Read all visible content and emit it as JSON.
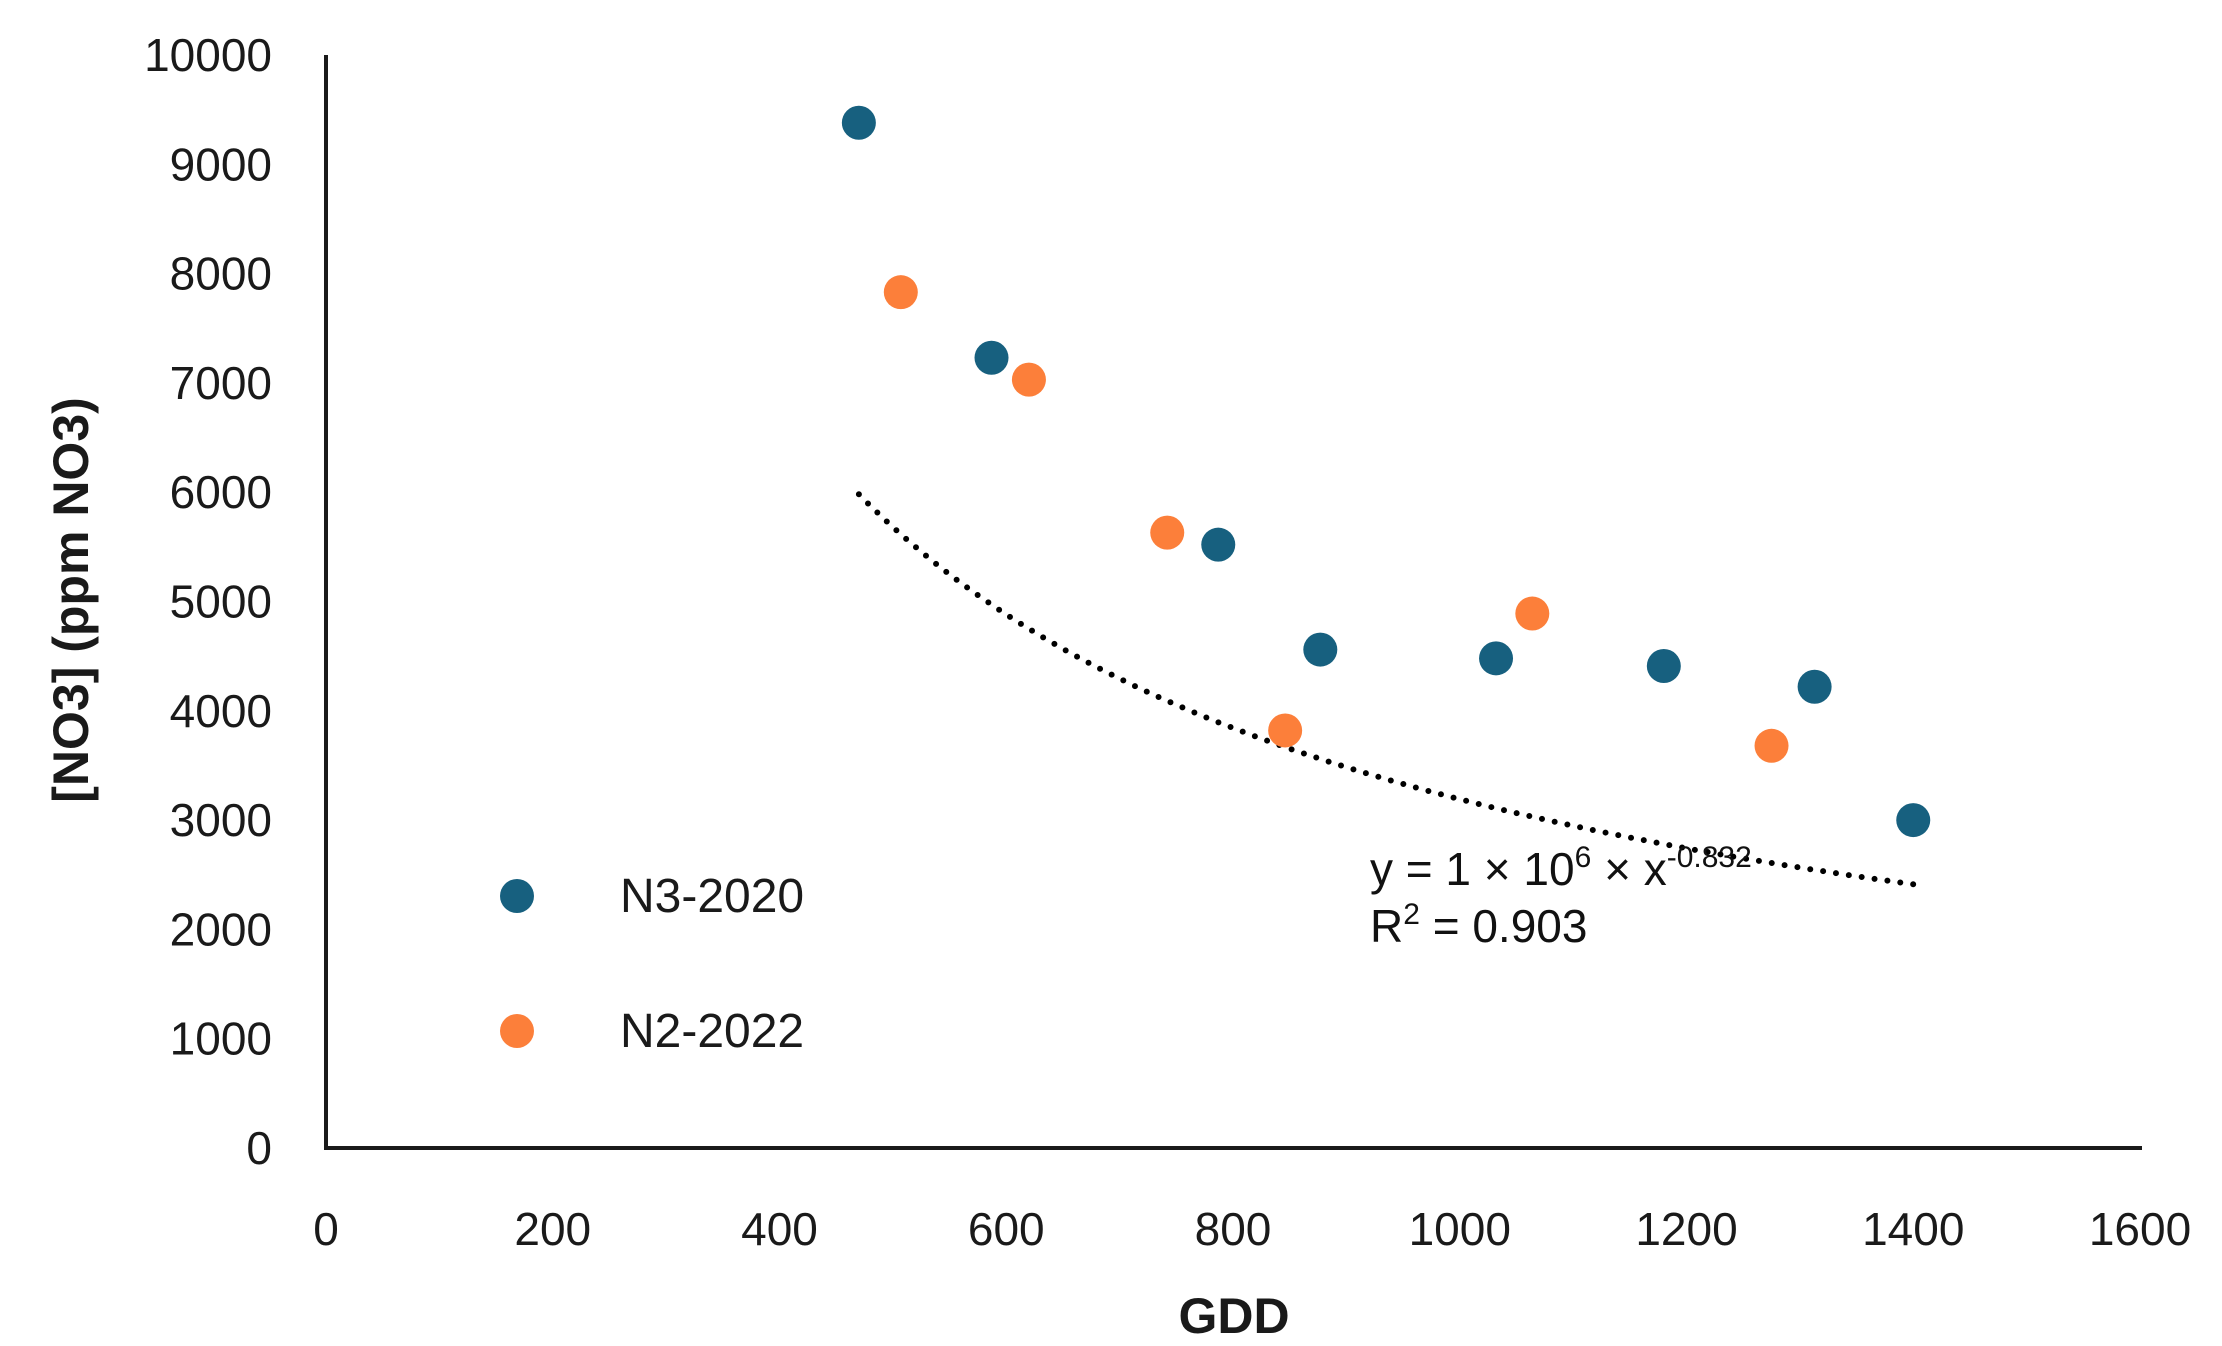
{
  "chart_data": {
    "type": "scatter",
    "title": "",
    "xlabel": "GDD",
    "ylabel": "[NO3] (ppm NO3)",
    "xlim": [
      0,
      1600
    ],
    "ylim": [
      0,
      10000
    ],
    "xticks": [
      0,
      200,
      400,
      600,
      800,
      1000,
      1200,
      1400,
      1600
    ],
    "yticks": [
      0,
      1000,
      2000,
      3000,
      4000,
      5000,
      6000,
      7000,
      8000,
      9000,
      10000
    ],
    "xtick_labels": [
      "0",
      "200",
      "400",
      "600",
      "800",
      "1000",
      "1200",
      "1400",
      "1600"
    ],
    "ytick_labels": [
      "0",
      "1000",
      "2000",
      "3000",
      "4000",
      "5000",
      "6000",
      "7000",
      "8000",
      "9000",
      "10000"
    ],
    "grid": false,
    "legend_position": "lower-left",
    "series": [
      {
        "name": "N3-2020",
        "color": "#17607f",
        "x": [
          470,
          587,
          787,
          877,
          1032,
          1180,
          1313,
          1400
        ],
        "y": [
          9380,
          7230,
          5520,
          4560,
          4480,
          4410,
          4220,
          3000
        ]
      },
      {
        "name": "N2-2022",
        "color": "#fc7f3a",
        "x": [
          507,
          620,
          742,
          846,
          1064,
          1275
        ],
        "y": [
          7830,
          7030,
          5630,
          3820,
          4890,
          3680
        ]
      }
    ],
    "trendline": {
      "type": "power",
      "coefficient": 1000000,
      "exponent": -0.832,
      "x_range": [
        470,
        1400
      ],
      "style": "dotted",
      "color": "#000000",
      "equation": {
        "prefix": "y = 1 × 10",
        "exp1": "6",
        "mid": " × x",
        "exp2": "-0.832"
      },
      "r2": {
        "prefix": "R",
        "sup": "2",
        "suffix": " = 0.903"
      }
    }
  }
}
